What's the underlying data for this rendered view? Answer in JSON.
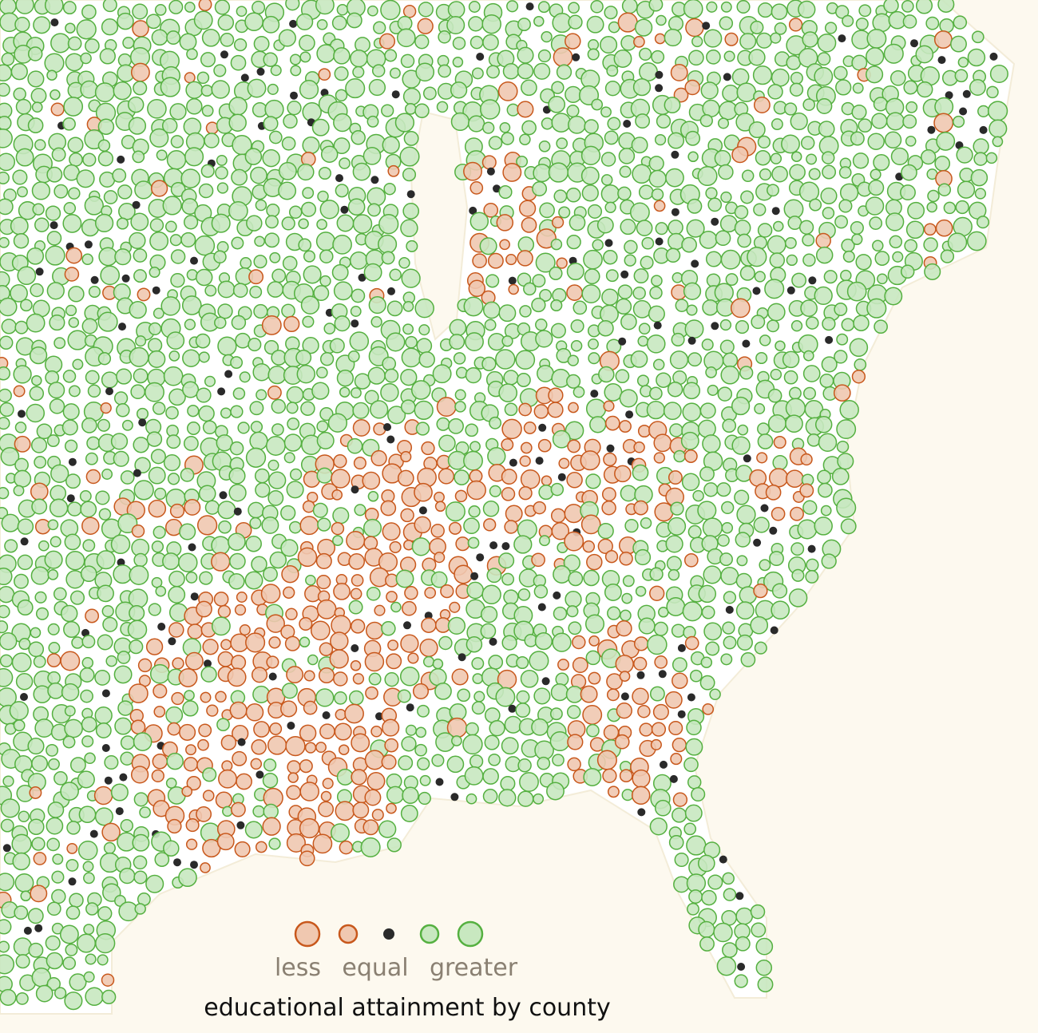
{
  "legend": {
    "labels": [
      "less",
      "equal",
      "greater"
    ]
  },
  "title": "educational attainment by county"
}
